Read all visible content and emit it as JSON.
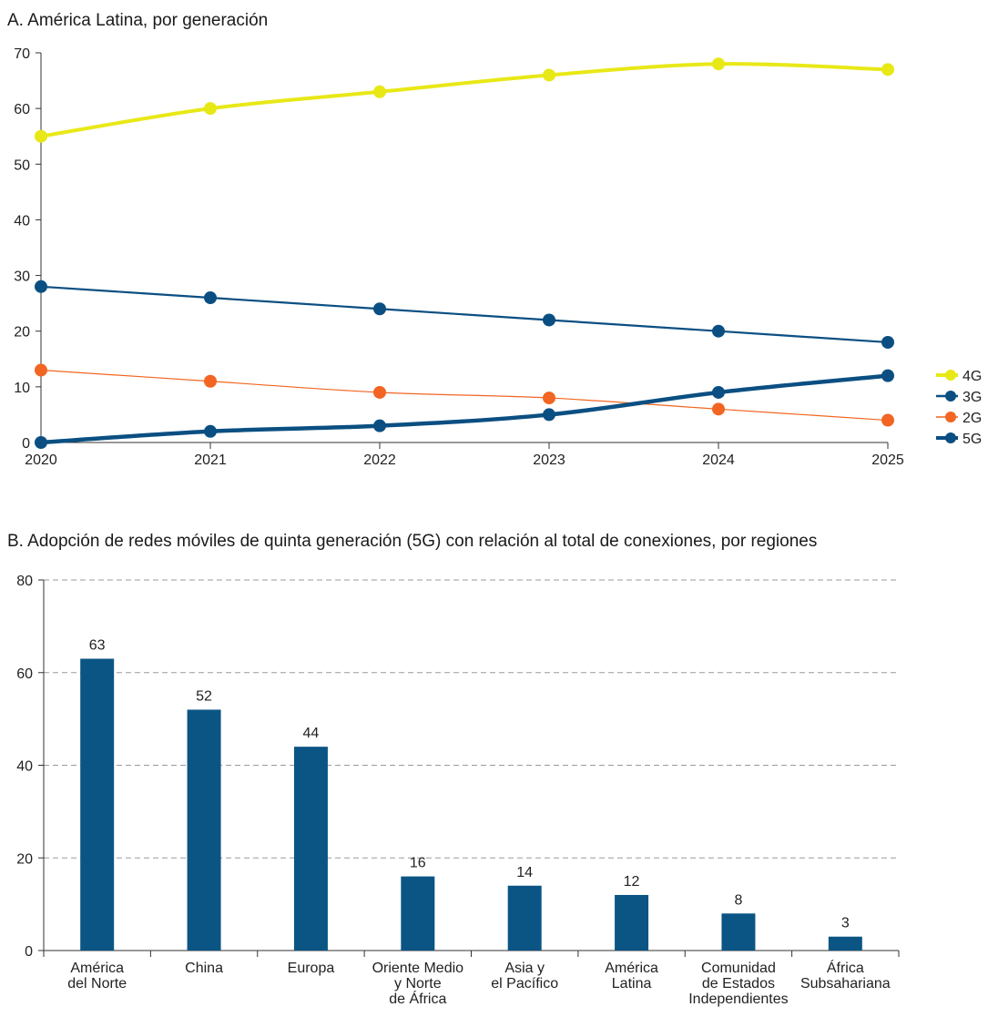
{
  "chart_data": [
    {
      "type": "line",
      "title": "A. América Latina, por generación",
      "x": [
        "2020",
        "2021",
        "2022",
        "2023",
        "2024",
        "2025"
      ],
      "ylim": [
        0,
        70
      ],
      "yticks": [
        0,
        10,
        20,
        30,
        40,
        50,
        60,
        70
      ],
      "grid": false,
      "legend": "right",
      "series": [
        {
          "name": "4G",
          "values": [
            55,
            60,
            63,
            66,
            68,
            67
          ],
          "color": "#e8e817"
        },
        {
          "name": "3G",
          "values": [
            28,
            26,
            24,
            22,
            20,
            18
          ],
          "color": "#0b4f82"
        },
        {
          "name": "2G",
          "values": [
            13,
            11,
            9,
            8,
            6,
            4
          ],
          "color": "#f26522"
        },
        {
          "name": "5G",
          "values": [
            0,
            2,
            3,
            5,
            9,
            12
          ],
          "color": "#0b4f82"
        }
      ]
    },
    {
      "type": "bar",
      "title": "B. Adopción de redes móviles de quinta generación (5G) con relación al total de conexiones, por regiones",
      "categories": [
        [
          "América",
          "del Norte"
        ],
        [
          "China"
        ],
        [
          "Europa"
        ],
        [
          "Oriente Medio",
          "y Norte",
          "de África"
        ],
        [
          "Asia y",
          "el Pacífico"
        ],
        [
          "América",
          "Latina"
        ],
        [
          "Comunidad",
          "de Estados",
          "Independientes"
        ],
        [
          "África",
          "Subsahariana"
        ]
      ],
      "values": [
        63,
        52,
        44,
        16,
        14,
        12,
        8,
        3
      ],
      "ylim": [
        0,
        80
      ],
      "yticks": [
        0,
        20,
        40,
        60,
        80
      ],
      "grid": true,
      "color": "#0b5584"
    }
  ]
}
